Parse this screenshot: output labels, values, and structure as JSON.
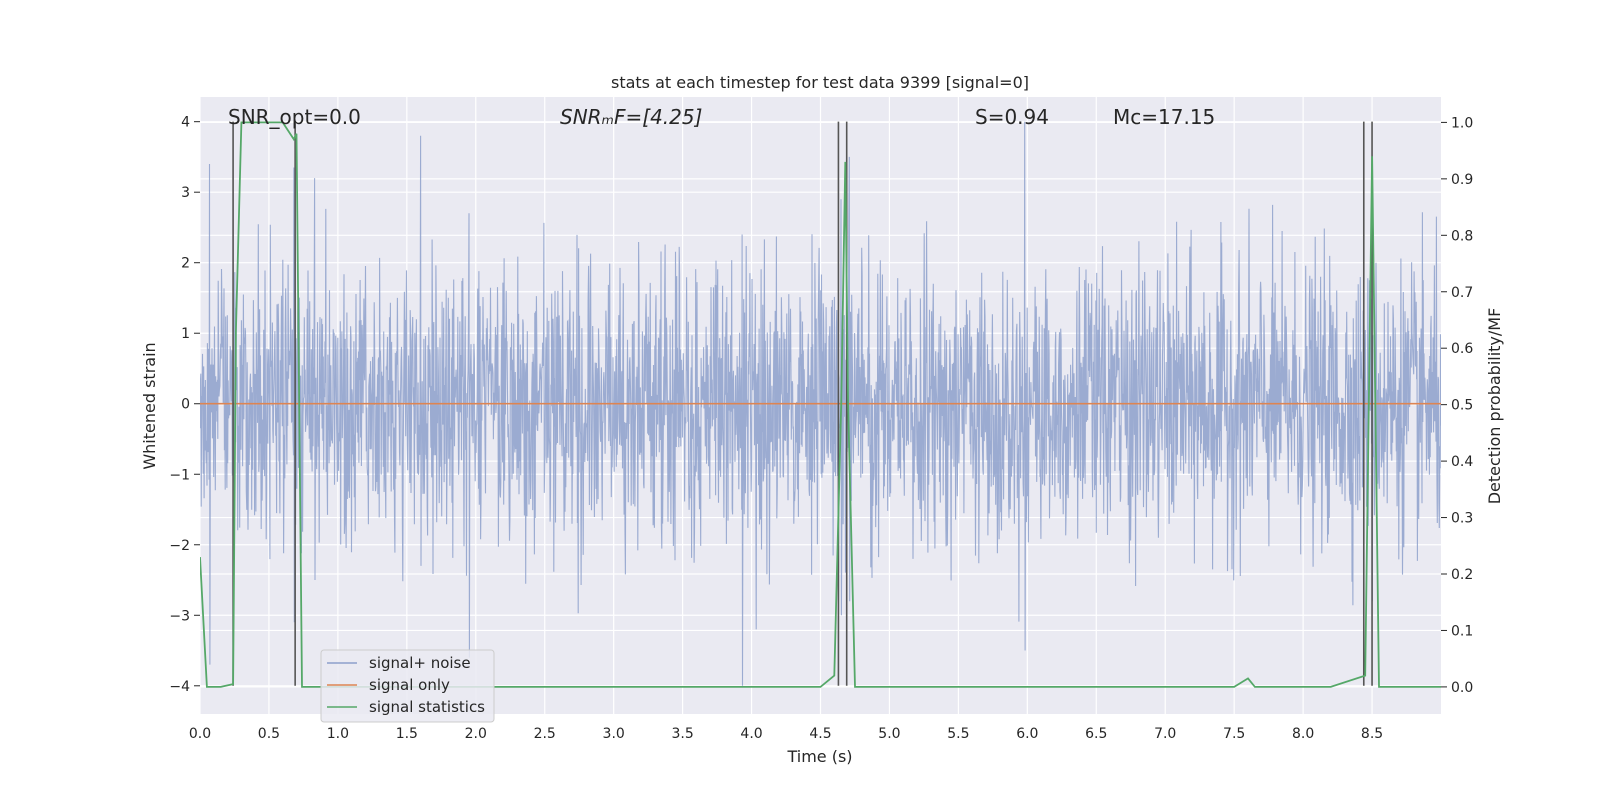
{
  "chart_data": {
    "type": "line",
    "title": "stats at each timestep for test data 9399 [signal=0]",
    "xlabel": "Time (s)",
    "ylabel": "Whitened strain",
    "y2label": "Detection probability/MF",
    "xlim": [
      0.0,
      9.0
    ],
    "ylim": [
      -4.4,
      4.35
    ],
    "y2lim": [
      -0.048,
      1.045
    ],
    "grid": true,
    "x_ticks": [
      0.0,
      0.5,
      1.0,
      1.5,
      2.0,
      2.5,
      3.0,
      3.5,
      4.0,
      4.5,
      5.0,
      5.5,
      6.0,
      6.5,
      7.0,
      7.5,
      8.0,
      8.5
    ],
    "x_tick_labels": [
      "0.0",
      "0.5",
      "1.0",
      "1.5",
      "2.0",
      "2.5",
      "3.0",
      "3.5",
      "4.0",
      "4.5",
      "5.0",
      "5.5",
      "6.0",
      "6.5",
      "7.0",
      "7.5",
      "8.0",
      "8.5"
    ],
    "y_ticks": [
      4,
      3,
      2,
      1,
      0,
      -1,
      -2,
      -3,
      -4
    ],
    "y_tick_labels": [
      "4",
      "3",
      "2",
      "1",
      "0",
      "−1",
      "−2",
      "−3",
      "−4"
    ],
    "y2_ticks": [
      1.0,
      0.9,
      0.8,
      0.7,
      0.6,
      0.5,
      0.4,
      0.3,
      0.2,
      0.1,
      0.0
    ],
    "y2_tick_labels": [
      "1.0",
      "0.9",
      "0.8",
      "0.7",
      "0.6",
      "0.5",
      "0.4",
      "0.3",
      "0.2",
      "0.1",
      "0.0"
    ],
    "annotations": [
      {
        "name": "snr-opt",
        "text": "SNR_opt=0.0",
        "x": 0.2,
        "y": 4.0
      },
      {
        "name": "snr-mf",
        "text": "SNRₘF=[4.25]",
        "x": 2.6,
        "y": 4.0
      },
      {
        "name": "s-value",
        "text": "S=0.94",
        "x": 5.55,
        "y": 4.0
      },
      {
        "name": "chirp-mass",
        "text": "Mᴄ=17.15",
        "x": 6.55,
        "y": 4.0
      }
    ],
    "vlines": [
      0.24,
      0.69,
      4.63,
      4.69,
      8.44,
      8.5
    ],
    "vline_range": [
      -4.0,
      4.0
    ],
    "legend": {
      "position": "lower-left",
      "entries": [
        "signal+ noise",
        "signal only",
        "signal statistics"
      ]
    },
    "series": [
      {
        "name": "signal+ noise",
        "color": "#8da0cb",
        "axis": "left",
        "kind": "noise",
        "amplitude_sigma": 1.0,
        "peaks": [
          [
            0.07,
            3.4,
            -3.7
          ],
          [
            0.68,
            3.35,
            -3.1
          ],
          [
            0.83,
            3.2,
            -2.5
          ],
          [
            1.6,
            3.8,
            -2.3
          ],
          [
            1.95,
            2.7,
            -3.6
          ],
          [
            3.93,
            2.4,
            -4.0
          ],
          [
            4.65,
            2.9,
            -3.0
          ],
          [
            4.71,
            3.5,
            -2.8
          ],
          [
            5.98,
            4.0,
            -3.5
          ],
          [
            8.5,
            3.4,
            -2.8
          ]
        ]
      },
      {
        "name": "signal only",
        "color": "#dd8452",
        "axis": "left",
        "values_constant": 0.0
      },
      {
        "name": "signal statistics",
        "color": "#55a868",
        "axis": "right",
        "x": [
          0.0,
          0.05,
          0.15,
          0.24,
          0.26,
          0.3,
          0.6,
          0.68,
          0.7,
          0.74,
          1.2,
          4.5,
          4.6,
          4.65,
          4.68,
          4.7,
          4.75,
          4.9,
          7.5,
          7.6,
          7.65,
          8.2,
          8.45,
          8.5,
          8.55,
          8.6,
          9.0
        ],
        "y": [
          0.23,
          0.0,
          0.0,
          0.005,
          0.63,
          1.0,
          1.0,
          0.97,
          0.98,
          0.0,
          0.0,
          0.0,
          0.02,
          0.5,
          0.93,
          0.5,
          0.0,
          0.0,
          0.0,
          0.015,
          0.0,
          0.0,
          0.02,
          0.94,
          0.0,
          0.0,
          0.0
        ]
      }
    ]
  }
}
